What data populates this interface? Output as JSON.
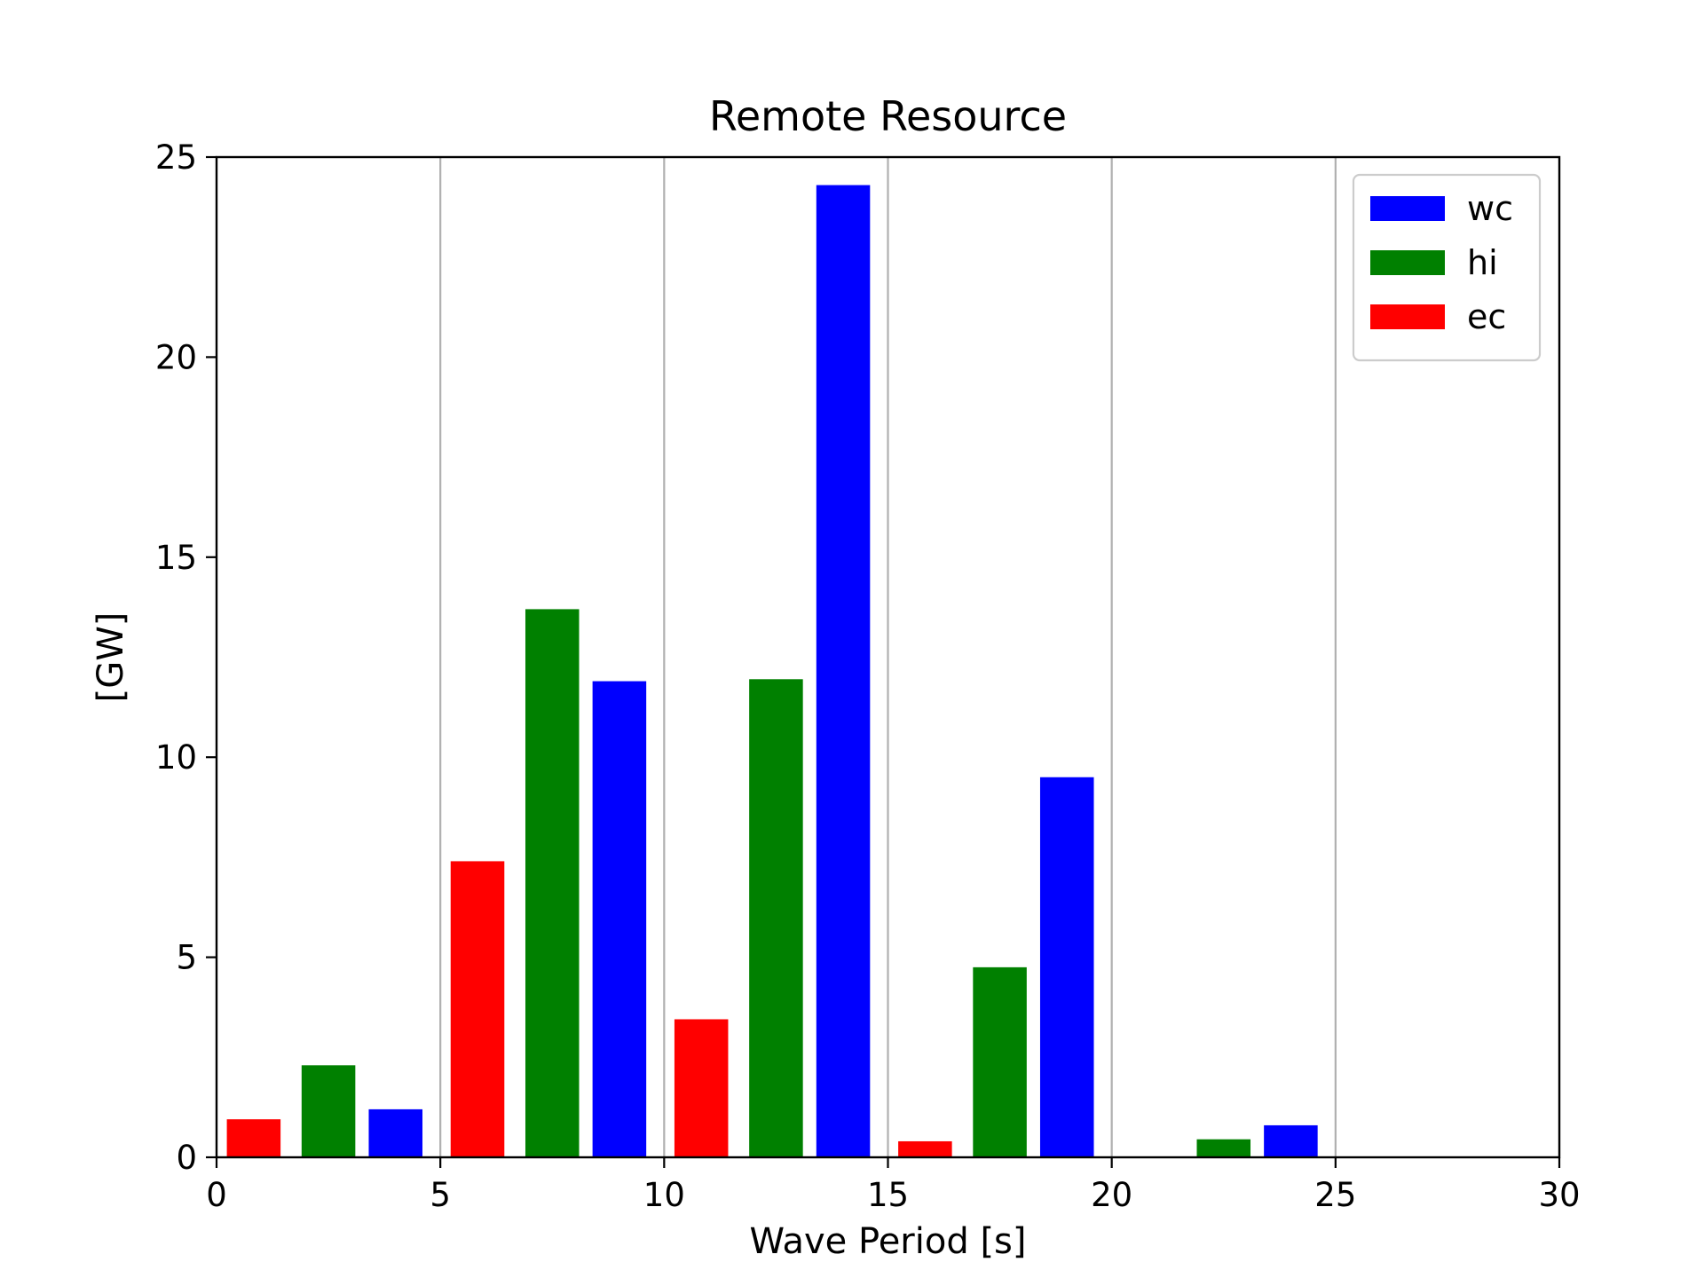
{
  "chart_data": {
    "type": "bar",
    "title": "Remote Resource",
    "xlabel": "Wave Period [s]",
    "ylabel": "[GW]",
    "xlim": [
      0,
      30
    ],
    "ylim": [
      0,
      25
    ],
    "xticks": [
      0,
      5,
      10,
      15,
      20,
      25,
      30
    ],
    "yticks": [
      0,
      5,
      10,
      15,
      20,
      25
    ],
    "grid": "vertical",
    "legend_position": "top-right",
    "bar_width": 1.2,
    "series": [
      {
        "name": "wc",
        "color": "#0000ff",
        "x": [
          4.0,
          9.0,
          14.0,
          19.0,
          24.0
        ],
        "values": [
          1.2,
          11.9,
          24.3,
          9.5,
          0.8
        ]
      },
      {
        "name": "hi",
        "color": "#008000",
        "x": [
          2.5,
          7.5,
          12.5,
          17.5,
          22.5
        ],
        "values": [
          2.3,
          13.7,
          11.95,
          4.75,
          0.45
        ]
      },
      {
        "name": "ec",
        "color": "#ff0000",
        "x": [
          0.83,
          5.83,
          10.83,
          15.83,
          20.83
        ],
        "values": [
          0.95,
          7.4,
          3.45,
          0.4,
          0
        ]
      }
    ]
  }
}
